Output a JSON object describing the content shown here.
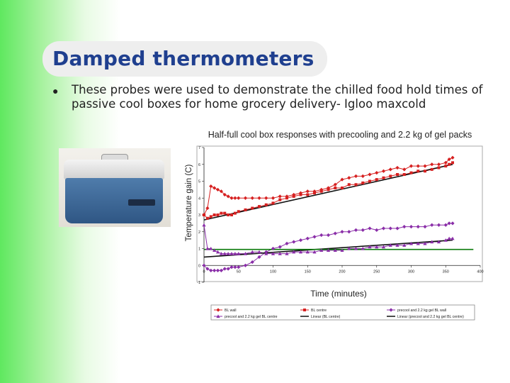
{
  "slide": {
    "title": "Damped thermometers",
    "bullet": "These probes were used to demonstrate the chilled food hold times of passive cool boxes for home grocery delivery- Igloo maxcold"
  },
  "chart_data": {
    "type": "line",
    "title": "Half-full cool box responses with precooling and 2.2 kg of gel packs",
    "xlabel": "Time (minutes)",
    "ylabel": "Temperature gain (C)",
    "xlim": [
      0,
      400
    ],
    "ylim": [
      -1,
      7
    ],
    "xticks": [
      "0",
      "50",
      "100",
      "150",
      "200",
      "250",
      "300",
      "350",
      "400"
    ],
    "yticks": [
      "-1",
      "0",
      "1",
      "2",
      "3",
      "4",
      "5",
      "6",
      "7"
    ],
    "grid": false,
    "legend_position": "bottom",
    "series": [
      {
        "name": "BL wall",
        "color": "#d62020",
        "marker": "diamond",
        "x": [
          0,
          5,
          10,
          15,
          20,
          25,
          30,
          35,
          40,
          45,
          50,
          60,
          70,
          80,
          90,
          100,
          110,
          120,
          130,
          140,
          150,
          160,
          170,
          180,
          190,
          200,
          210,
          220,
          230,
          240,
          250,
          260,
          270,
          280,
          290,
          300,
          310,
          320,
          330,
          340,
          350,
          355,
          360
        ],
        "values": [
          3.0,
          3.4,
          4.7,
          4.6,
          4.5,
          4.4,
          4.2,
          4.1,
          4.0,
          4.0,
          4.0,
          4.0,
          4.0,
          4.0,
          4.0,
          4.0,
          4.1,
          4.1,
          4.2,
          4.3,
          4.4,
          4.4,
          4.5,
          4.6,
          4.8,
          5.1,
          5.2,
          5.3,
          5.3,
          5.4,
          5.5,
          5.6,
          5.7,
          5.8,
          5.7,
          5.9,
          5.9,
          5.9,
          6.0,
          6.0,
          6.1,
          6.3,
          6.4
        ]
      },
      {
        "name": "BL centre",
        "color": "#d62020",
        "marker": "square",
        "x": [
          0,
          5,
          10,
          15,
          20,
          25,
          30,
          35,
          40,
          45,
          50,
          60,
          70,
          80,
          90,
          100,
          110,
          120,
          130,
          140,
          150,
          160,
          170,
          180,
          190,
          200,
          210,
          220,
          230,
          240,
          250,
          260,
          270,
          280,
          290,
          300,
          310,
          320,
          330,
          340,
          350,
          355,
          360
        ],
        "values": [
          3.0,
          2.8,
          2.9,
          3.0,
          3.0,
          3.1,
          3.1,
          3.0,
          3.0,
          3.1,
          3.2,
          3.3,
          3.4,
          3.5,
          3.6,
          3.7,
          3.9,
          4.0,
          4.1,
          4.2,
          4.2,
          4.3,
          4.4,
          4.5,
          4.6,
          4.6,
          4.8,
          4.8,
          4.9,
          5.0,
          5.1,
          5.2,
          5.3,
          5.4,
          5.4,
          5.5,
          5.6,
          5.6,
          5.7,
          5.8,
          5.9,
          6.0,
          6.1
        ]
      },
      {
        "name": "precool and 2.2 kg gel BL wall",
        "color": "#8a2ea8",
        "marker": "diamond",
        "x": [
          0,
          5,
          10,
          15,
          20,
          25,
          30,
          35,
          40,
          45,
          50,
          60,
          70,
          80,
          90,
          100,
          110,
          120,
          130,
          140,
          150,
          160,
          170,
          180,
          190,
          200,
          210,
          220,
          230,
          240,
          250,
          260,
          270,
          280,
          290,
          300,
          310,
          320,
          330,
          340,
          350,
          355,
          360
        ],
        "values": [
          0.0,
          -0.2,
          -0.3,
          -0.3,
          -0.3,
          -0.3,
          -0.2,
          -0.2,
          -0.1,
          -0.1,
          -0.1,
          0.0,
          0.2,
          0.5,
          0.8,
          1.0,
          1.1,
          1.3,
          1.4,
          1.5,
          1.6,
          1.7,
          1.8,
          1.8,
          1.9,
          2.0,
          2.0,
          2.1,
          2.1,
          2.2,
          2.1,
          2.2,
          2.2,
          2.2,
          2.3,
          2.3,
          2.3,
          2.3,
          2.4,
          2.4,
          2.4,
          2.5,
          2.5
        ]
      },
      {
        "name": "precool and 2.2 kg gel BL centre",
        "color": "#8a2ea8",
        "marker": "triangle",
        "x": [
          0,
          5,
          10,
          15,
          20,
          25,
          30,
          35,
          40,
          45,
          50,
          60,
          70,
          80,
          90,
          100,
          110,
          120,
          130,
          140,
          150,
          160,
          170,
          180,
          190,
          200,
          210,
          220,
          230,
          240,
          250,
          260,
          270,
          280,
          290,
          300,
          310,
          320,
          330,
          340,
          350,
          355,
          360
        ],
        "values": [
          2.4,
          1.0,
          1.0,
          0.9,
          0.8,
          0.7,
          0.7,
          0.7,
          0.7,
          0.7,
          0.7,
          0.7,
          0.8,
          0.8,
          0.7,
          0.7,
          0.7,
          0.7,
          0.8,
          0.8,
          0.8,
          0.8,
          0.9,
          0.9,
          0.9,
          0.9,
          1.0,
          1.0,
          1.0,
          1.1,
          1.1,
          1.1,
          1.2,
          1.2,
          1.2,
          1.3,
          1.3,
          1.3,
          1.4,
          1.4,
          1.5,
          1.6,
          1.6
        ]
      },
      {
        "name": "Linear (BL centre)",
        "color": "#111111",
        "x": [
          0,
          360
        ],
        "values": [
          2.7,
          6.0
        ]
      },
      {
        "name": "Linear (precool and 2.2 kg gel BL centre)",
        "color": "#111111",
        "x": [
          0,
          360
        ],
        "values": [
          0.5,
          1.5
        ]
      },
      {
        "name": "",
        "color": "#0a7a0a",
        "x": [
          0,
          390
        ],
        "values": [
          0.95,
          0.95
        ]
      }
    ]
  }
}
